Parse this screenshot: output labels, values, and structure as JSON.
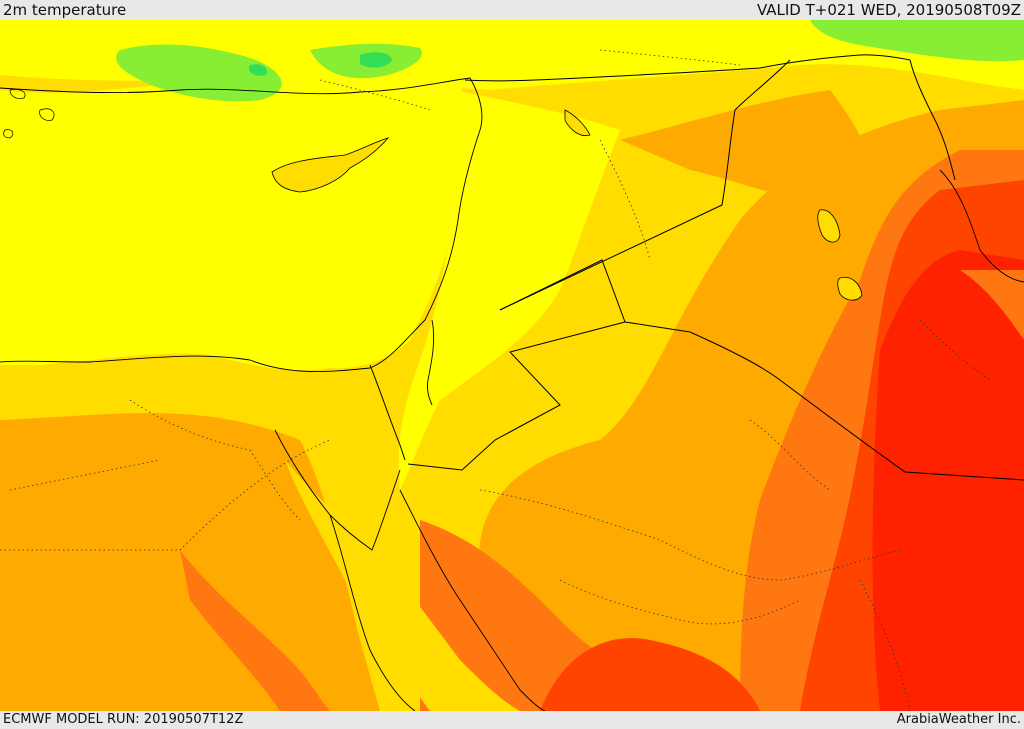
{
  "header": {
    "title": "2m temperature",
    "valid": "VALID T+021 WED, 20190508T09Z"
  },
  "footer": {
    "model_run": "ECMWF MODEL RUN: 20190507T12Z",
    "credit": "ArabiaWeather Inc."
  },
  "map": {
    "variable": "2m temperature",
    "color_scale": [
      "#33dd55",
      "#88ee33",
      "#ffff00",
      "#ffdd00",
      "#ffaa00",
      "#ff7711",
      "#ff4400",
      "#ff2200"
    ],
    "sea_color": "#ffff00"
  }
}
